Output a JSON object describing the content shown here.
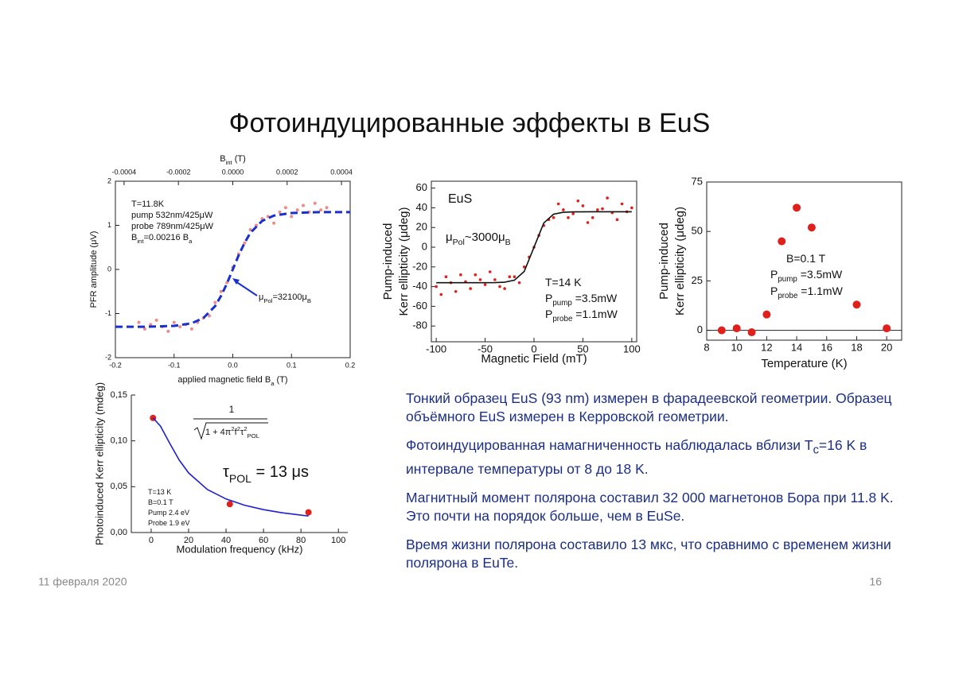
{
  "title": "Фотоиндуцированные эффекты в EuS",
  "chart_data": [
    {
      "type": "scatter",
      "x_label": [
        "applied magnetic field ",
        "B",
        {
          "sub": "a"
        },
        " (T)"
      ],
      "y_label": [
        "PFR amplitude (μV)"
      ],
      "x2_label": [
        "B",
        {
          "sub": "int"
        },
        " (T)"
      ],
      "xlim": [
        -0.2,
        0.2
      ],
      "xticks": [
        -0.2,
        -0.1,
        {
          "value": 0,
          "label": "0.0"
        },
        0.1,
        0.2
      ],
      "x2lim": [
        -0.000432,
        0.000432
      ],
      "x2ticks": [
        -0.0004,
        -0.0002,
        {
          "value": 0,
          "label": "0.0000"
        },
        0.0002,
        0.0004
      ],
      "ylim": [
        -2,
        2
      ],
      "yticks": [
        -2,
        -1,
        0,
        1,
        2
      ],
      "annotations": [
        [
          "T",
          "=11.8K"
        ],
        [
          "pump 532nm/425μW"
        ],
        [
          "probe 789nm/425μW"
        ],
        [
          "B",
          {
            "sub": "int"
          },
          "=0.00216 ",
          "B",
          {
            "sub": "a"
          }
        ],
        [
          "μ",
          {
            "sub": "Pol"
          },
          "=32100μ",
          {
            "sub": "B"
          }
        ]
      ],
      "series": [
        {
          "mode": "markers",
          "color": "#f08a8a",
          "x": [
            -0.16,
            -0.15,
            -0.14,
            -0.13,
            -0.12,
            -0.11,
            -0.1,
            -0.09,
            -0.08,
            -0.07,
            -0.06,
            -0.05,
            -0.04,
            -0.03,
            -0.02,
            -0.01,
            0,
            0.01,
            0.02,
            0.03,
            0.04,
            0.05,
            0.06,
            0.07,
            0.08,
            0.09,
            0.1,
            0.11,
            0.12,
            0.13,
            0.14,
            0.15,
            0.16
          ],
          "values": [
            -1.2,
            -1.35,
            -1.25,
            -1.15,
            -1.3,
            -1.4,
            -1.2,
            -1.3,
            -1.25,
            -1.35,
            -1.2,
            -1.1,
            -1.05,
            -0.75,
            -0.5,
            -0.3,
            0.05,
            0.35,
            0.6,
            0.9,
            1.0,
            1.15,
            1.2,
            1.05,
            1.3,
            1.4,
            1.2,
            1.35,
            1.45,
            1.3,
            1.5,
            1.35,
            1.4
          ]
        },
        {
          "mode": "line",
          "color": "#1a2fd0",
          "dashed": true,
          "x": [
            -0.2,
            -0.15,
            -0.1,
            -0.07,
            -0.05,
            -0.03,
            -0.02,
            -0.01,
            0,
            0.01,
            0.02,
            0.03,
            0.05,
            0.07,
            0.1,
            0.15,
            0.2
          ],
          "values": [
            -1.3,
            -1.3,
            -1.28,
            -1.22,
            -1.1,
            -0.83,
            -0.6,
            -0.32,
            0,
            0.32,
            0.6,
            0.83,
            1.1,
            1.22,
            1.28,
            1.3,
            1.3
          ]
        }
      ]
    },
    {
      "type": "scatter",
      "x_label": "Magnetic Field (mT)",
      "y_label": [
        "Pump-induced",
        "Kerr ellipticity (μdeg)"
      ],
      "xlim": [
        -105,
        105
      ],
      "xticks": [
        -100,
        -50,
        0,
        50,
        100
      ],
      "ylim": [
        -96,
        67
      ],
      "yticks": [
        -80,
        -60,
        -40,
        -20,
        0,
        20,
        40,
        60
      ],
      "annotations": [
        [
          "EuS"
        ],
        [
          "μ",
          {
            "sub": "Pol"
          },
          "~3000μ",
          {
            "sub": "B"
          }
        ],
        [
          "T=14 K"
        ],
        [
          "P",
          {
            "sub": "pump"
          },
          " =3.5mW"
        ],
        [
          "P",
          {
            "sub": "probe"
          },
          " =1.1mW"
        ]
      ],
      "series": [
        {
          "mode": "markers",
          "color": "#e0201b",
          "x": [
            -100,
            -95,
            -90,
            -85,
            -80,
            -75,
            -70,
            -65,
            -60,
            -55,
            -50,
            -45,
            -40,
            -35,
            -30,
            -25,
            -20,
            -15,
            -10,
            -5,
            0,
            5,
            10,
            15,
            20,
            25,
            30,
            35,
            40,
            45,
            50,
            55,
            60,
            65,
            70,
            75,
            80,
            85,
            90,
            95,
            100
          ],
          "values": [
            -40,
            -48,
            -30,
            -36,
            -45,
            -28,
            -35,
            -42,
            -28,
            -33,
            -38,
            -25,
            -33,
            -40,
            -42,
            -30,
            -30,
            -36,
            -20,
            -10,
            0,
            12,
            22,
            28,
            30,
            44,
            38,
            30,
            34,
            47,
            42,
            25,
            30,
            38,
            39,
            50,
            35,
            28,
            44,
            36,
            40
          ]
        },
        {
          "mode": "line",
          "color": "#111111",
          "x": [
            -100,
            -60,
            -40,
            -30,
            -20,
            -10,
            0,
            10,
            20,
            30,
            40,
            60,
            100
          ],
          "values": [
            -36,
            -36,
            -35.9,
            -35.5,
            -33.5,
            -24.6,
            0,
            24.6,
            33.5,
            35.5,
            35.9,
            36,
            36
          ]
        }
      ]
    },
    {
      "type": "scatter",
      "x_label": "Temperature (K)",
      "y_label": [
        "Pump-induced",
        "Kerr ellipticity (μdeg)"
      ],
      "xlim": [
        8,
        21
      ],
      "xticks": [
        8,
        10,
        12,
        14,
        16,
        18,
        20
      ],
      "ylim": [
        -5,
        75
      ],
      "yticks": [
        0,
        25,
        50,
        75
      ],
      "annotations": [
        [
          "B=0.1 T"
        ],
        [
          "P",
          {
            "sub": "pump"
          },
          " =3.5mW"
        ],
        [
          "P",
          {
            "sub": "probe"
          },
          " =1.1mW"
        ]
      ],
      "series": [
        {
          "mode": "markers",
          "color": "#e0201b",
          "x": [
            9,
            10,
            11,
            12,
            13,
            14,
            15,
            18,
            20
          ],
          "values": [
            0,
            1,
            -1,
            8,
            45,
            62,
            52,
            13,
            1
          ]
        }
      ]
    },
    {
      "type": "scatter",
      "x_label": "Modulation frequency (kHz)",
      "y_label": [
        "Photoinduced Kerr ellipticity (mdeg)"
      ],
      "xlim": [
        -10.6,
        105
      ],
      "xticks": [
        0,
        20,
        40,
        60,
        80,
        100
      ],
      "ylim": [
        0,
        0.15
      ],
      "yticks": [
        {
          "value": 0,
          "label": "0,00"
        },
        {
          "value": 0.05,
          "label": "0,05"
        },
        {
          "value": 0.1,
          "label": "0,10"
        },
        {
          "value": 0.15,
          "label": "0,15"
        }
      ],
      "annotations": [
        [
          "1"
        ],
        [
          "1 + 4π",
          {
            "sup": "2"
          },
          "f",
          {
            "sup": "2"
          },
          "τ",
          {
            "sup": "2"
          },
          {
            "sub": "POL"
          }
        ],
        [
          "τ",
          {
            "sub": "POL"
          },
          " = 13 μs"
        ],
        [
          "T=13 K"
        ],
        [
          "B=0.1 T"
        ],
        [
          "Pump 2.4 eV"
        ],
        [
          "Probe 1.9 eV"
        ]
      ],
      "series": [
        {
          "mode": "markers",
          "color": "#e0201b",
          "x": [
            1,
            42,
            84
          ],
          "values": [
            0.125,
            0.031,
            0.022
          ]
        },
        {
          "mode": "line",
          "color": "#2020d0",
          "x": [
            1,
            5,
            10,
            15,
            20,
            30,
            40,
            50,
            60,
            70,
            84
          ],
          "values": [
            0.125,
            0.116,
            0.097,
            0.079,
            0.065,
            0.047,
            0.0366,
            0.0297,
            0.025,
            0.0215,
            0.018
          ]
        }
      ]
    }
  ],
  "paragraphs": [
    [
      "Тонкий образец EuS (93 nm) измерен в фарадеевской геометрии. Образец объёмного EuS измерен в Керровской геометрии."
    ],
    [
      "Фотоиндуцированная намагниченность наблюдалась вблизи T",
      {
        "sub": "c"
      },
      "=16 K в интервале температуры от 8 до 18 K."
    ],
    [
      "Магнитный момент полярона составил 32 000 магнетонов Бора при 11.8 K. Это почти на порядок больше, чем в EuSe."
    ],
    [
      "Время жизни полярона составило 13 мкс, что сравнимо с временем жизни полярона в EuTe."
    ]
  ],
  "footer": {
    "date": "11 февраля 2020",
    "page": "16"
  }
}
